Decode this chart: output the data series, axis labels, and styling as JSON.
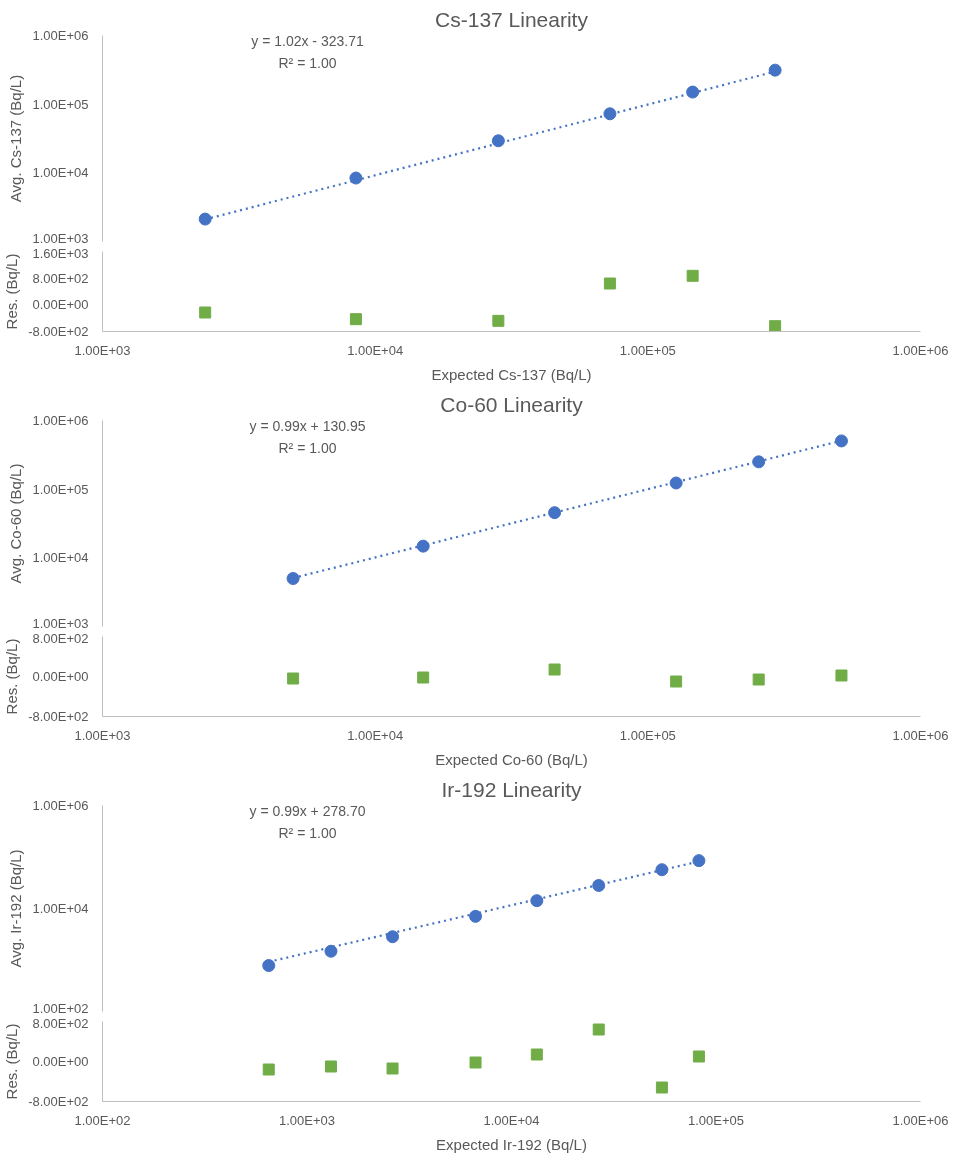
{
  "chart_data": [
    {
      "type": "scatter",
      "title": "Cs-137 Linearity",
      "ylabel": "Avg. Cs-137 (Bq/L)",
      "log": "xy",
      "tick_labels": "y",
      "annotations": [
        "y = 1.02x - 323.71",
        "R² = 1.00"
      ],
      "xlim": [
        1000,
        1000000
      ],
      "ylim": [
        1000,
        1000000
      ],
      "yticks": [
        {
          "value": 1000,
          "label": "1.00E+03"
        },
        {
          "value": 10000,
          "label": "1.00E+04"
        },
        {
          "value": 100000,
          "label": "1.00E+05"
        },
        {
          "value": 1000000,
          "label": "1.00E+06"
        }
      ],
      "series": [
        {
          "type": "scatter",
          "marker": "circle",
          "color": "#4472c4",
          "x": [
            2380,
            8500,
            28300,
            72600,
            146000,
            293000
          ],
          "values": [
            2120,
            8400,
            29300,
            72400,
            150000,
            313000
          ]
        },
        {
          "type": "line",
          "line_style": "dotted",
          "color": "#4472c4",
          "x": [
            2380,
            293000
          ],
          "values": [
            2100,
            298500
          ]
        }
      ]
    },
    {
      "type": "scatter",
      "xlabel": "Expected Cs-137 (Bq/L)",
      "ylabel": "Res. (Bq/L)",
      "log": "x",
      "xlim": [
        1000,
        1000000
      ],
      "ylim": [
        -800,
        1600
      ],
      "xticks": [
        {
          "value": 1000,
          "label": "1.00E+03"
        },
        {
          "value": 10000,
          "label": "1.00E+04"
        },
        {
          "value": 100000,
          "label": "1.00E+05"
        },
        {
          "value": 1000000,
          "label": "1.00E+06"
        }
      ],
      "yticks": [
        {
          "value": -800,
          "label": "-8.00E+02"
        },
        {
          "value": 0,
          "label": "0.00E+00"
        },
        {
          "value": 800,
          "label": "8.00E+02"
        },
        {
          "value": 1600,
          "label": "1.60E+03"
        }
      ],
      "series": [
        {
          "type": "scatter",
          "marker": "square",
          "color": "#70ad47",
          "x": [
            2380,
            8500,
            28300,
            72600,
            146000,
            293000
          ],
          "values": [
            -230,
            -430,
            -480,
            640,
            870,
            -640
          ]
        }
      ]
    },
    {
      "type": "scatter",
      "title": "Co-60 Linearity",
      "ylabel": "Avg. Co-60 (Bq/L)",
      "log": "xy",
      "tick_labels": "y",
      "annotations": [
        "y = 0.99x + 130.95",
        "R² = 1.00"
      ],
      "xlim": [
        1000,
        1000000
      ],
      "ylim": [
        1000,
        1000000
      ],
      "yticks": [
        {
          "value": 1000,
          "label": "1.00E+03"
        },
        {
          "value": 10000,
          "label": "1.00E+04"
        },
        {
          "value": 100000,
          "label": "1.00E+05"
        },
        {
          "value": 1000000,
          "label": "1.00E+06"
        }
      ],
      "series": [
        {
          "type": "scatter",
          "marker": "circle",
          "color": "#4472c4",
          "x": [
            5000,
            15000,
            45500,
            127000,
            255000,
            513000
          ],
          "values": [
            5000,
            14800,
            45500,
            123000,
            250000,
            504000
          ]
        },
        {
          "type": "line",
          "line_style": "dotted",
          "color": "#4472c4",
          "x": [
            5000,
            513000
          ],
          "values": [
            5080,
            508000
          ]
        }
      ]
    },
    {
      "type": "scatter",
      "xlabel": "Expected Co-60 (Bq/L)",
      "ylabel": "Res. (Bq/L)",
      "log": "x",
      "xlim": [
        1000,
        1000000
      ],
      "ylim": [
        -800,
        800
      ],
      "xticks": [
        {
          "value": 1000,
          "label": "1.00E+03"
        },
        {
          "value": 10000,
          "label": "1.00E+04"
        },
        {
          "value": 100000,
          "label": "1.00E+05"
        },
        {
          "value": 1000000,
          "label": "1.00E+06"
        }
      ],
      "yticks": [
        {
          "value": -800,
          "label": "-8.00E+02"
        },
        {
          "value": 0,
          "label": "0.00E+00"
        },
        {
          "value": 800,
          "label": "8.00E+02"
        }
      ],
      "series": [
        {
          "type": "scatter",
          "marker": "square",
          "color": "#70ad47",
          "x": [
            5000,
            15000,
            45500,
            127000,
            255000,
            513000
          ],
          "values": [
            -40,
            -20,
            140,
            -100,
            -60,
            20
          ]
        }
      ]
    },
    {
      "type": "scatter",
      "title": "Ir-192 Linearity",
      "ylabel": "Avg. Ir-192 (Bq/L)",
      "log": "xy",
      "tick_labels": "y",
      "annotations": [
        "y = 0.99x + 278.70",
        "R² = 1.00"
      ],
      "xlim": [
        100,
        1000000
      ],
      "ylim": [
        100,
        1000000
      ],
      "yticks": [
        {
          "value": 100,
          "label": "1.00E+02"
        },
        {
          "value": 10000,
          "label": "1.00E+04"
        },
        {
          "value": 1000000,
          "label": "1.00E+06"
        }
      ],
      "series": [
        {
          "type": "scatter",
          "marker": "circle",
          "color": "#4472c4",
          "x": [
            650,
            1310,
            2620,
            6670,
            13300,
            26700,
            54400,
            82500
          ],
          "values": [
            780,
            1480,
            2830,
            7040,
            14200,
            28000,
            56600,
            85000
          ]
        },
        {
          "type": "line",
          "line_style": "dotted",
          "color": "#4472c4",
          "x": [
            650,
            82500
          ],
          "values": [
            920,
            81950
          ]
        }
      ]
    },
    {
      "type": "scatter",
      "xlabel": "Expected Ir-192 (Bq/L)",
      "ylabel": "Res. (Bq/L)",
      "log": "x",
      "xlim": [
        100,
        1000000
      ],
      "ylim": [
        -800,
        800
      ],
      "xticks": [
        {
          "value": 100,
          "label": "1.00E+02"
        },
        {
          "value": 1000,
          "label": "1.00E+03"
        },
        {
          "value": 10000,
          "label": "1.00E+04"
        },
        {
          "value": 100000,
          "label": "1.00E+05"
        },
        {
          "value": 1000000,
          "label": "1.00E+06"
        }
      ],
      "yticks": [
        {
          "value": -800,
          "label": "-8.00E+02"
        },
        {
          "value": 0,
          "label": "0.00E+00"
        },
        {
          "value": 800,
          "label": "8.00E+02"
        }
      ],
      "series": [
        {
          "type": "scatter",
          "marker": "square",
          "color": "#70ad47",
          "x": [
            650,
            1310,
            2620,
            6670,
            13300,
            26700,
            54400,
            82500
          ],
          "values": [
            -160,
            -100,
            -140,
            -20,
            140,
            640,
            -520,
            100
          ]
        }
      ]
    }
  ]
}
